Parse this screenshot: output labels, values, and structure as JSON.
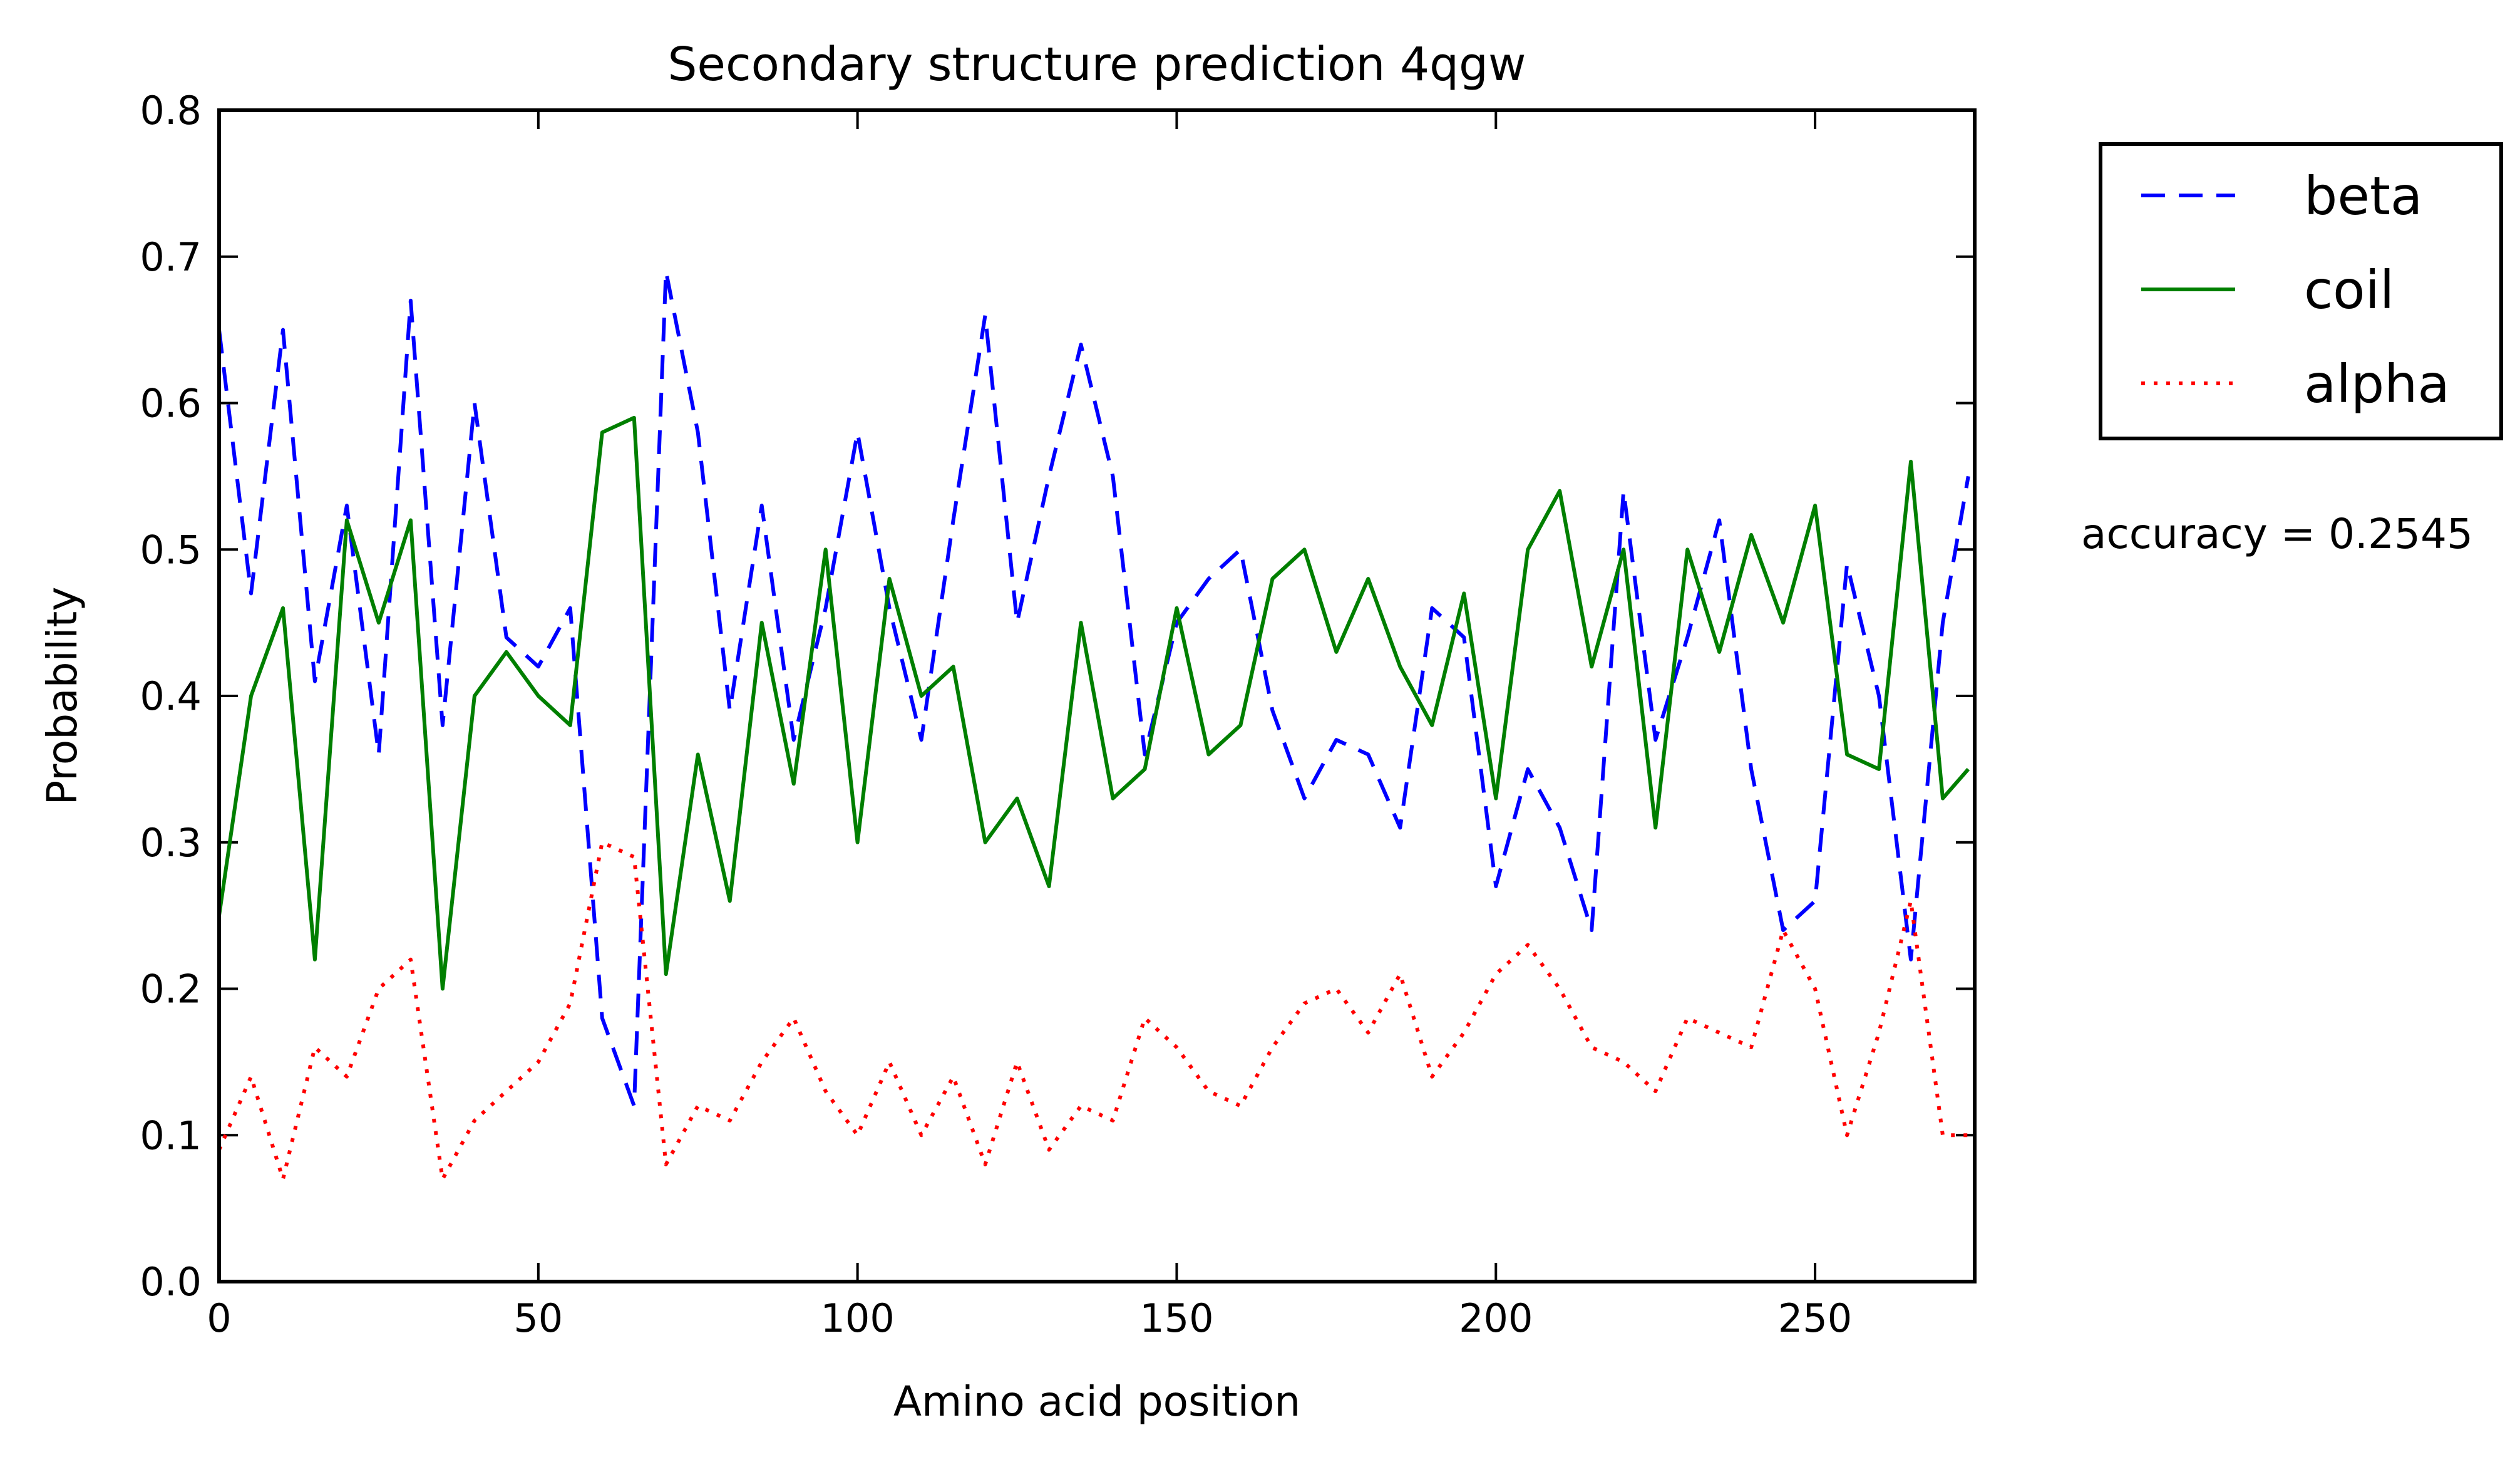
{
  "chart_data": {
    "type": "line",
    "title": "Secondary structure prediction 4qgw",
    "xlabel": "Amino acid position",
    "ylabel": "Probability",
    "xlim": [
      0,
      275
    ],
    "ylim": [
      0.0,
      0.8
    ],
    "xticks": [
      0,
      50,
      100,
      150,
      200,
      250
    ],
    "yticks": [
      0.0,
      0.1,
      0.2,
      0.3,
      0.4,
      0.5,
      0.6,
      0.7,
      0.8
    ],
    "xtick_labels": [
      "0",
      "50",
      "100",
      "150",
      "200",
      "250"
    ],
    "ytick_labels": [
      "0.0",
      "0.1",
      "0.2",
      "0.3",
      "0.4",
      "0.5",
      "0.6",
      "0.7",
      "0.8"
    ],
    "grid": false,
    "legend_position": "outside-top-right",
    "annotation": "accuracy = 0.2545",
    "x": [
      0,
      5,
      10,
      15,
      20,
      25,
      30,
      35,
      40,
      45,
      50,
      55,
      60,
      65,
      70,
      75,
      80,
      85,
      90,
      95,
      100,
      105,
      110,
      115,
      120,
      125,
      130,
      135,
      140,
      145,
      150,
      155,
      160,
      165,
      170,
      175,
      180,
      185,
      190,
      195,
      200,
      205,
      210,
      215,
      220,
      225,
      230,
      235,
      240,
      245,
      250,
      255,
      260,
      265,
      270,
      274
    ],
    "series": [
      {
        "name": "beta",
        "color": "#0000ff",
        "dash": "dashed",
        "values": [
          0.65,
          0.47,
          0.65,
          0.41,
          0.53,
          0.36,
          0.67,
          0.38,
          0.6,
          0.44,
          0.42,
          0.46,
          0.18,
          0.12,
          0.69,
          0.58,
          0.39,
          0.53,
          0.37,
          0.46,
          0.58,
          0.46,
          0.37,
          0.52,
          0.66,
          0.45,
          0.55,
          0.64,
          0.55,
          0.36,
          0.45,
          0.48,
          0.5,
          0.39,
          0.33,
          0.37,
          0.36,
          0.31,
          0.46,
          0.44,
          0.27,
          0.35,
          0.31,
          0.24,
          0.54,
          0.37,
          0.44,
          0.52,
          0.35,
          0.24,
          0.26,
          0.49,
          0.4,
          0.22,
          0.45,
          0.55
        ]
      },
      {
        "name": "coil",
        "color": "#007f00",
        "dash": "solid",
        "values": [
          0.25,
          0.4,
          0.46,
          0.22,
          0.52,
          0.45,
          0.52,
          0.2,
          0.4,
          0.43,
          0.4,
          0.38,
          0.58,
          0.59,
          0.21,
          0.36,
          0.26,
          0.45,
          0.34,
          0.5,
          0.3,
          0.48,
          0.4,
          0.42,
          0.3,
          0.33,
          0.27,
          0.45,
          0.33,
          0.35,
          0.46,
          0.36,
          0.38,
          0.48,
          0.5,
          0.43,
          0.48,
          0.42,
          0.38,
          0.47,
          0.33,
          0.5,
          0.54,
          0.42,
          0.5,
          0.31,
          0.5,
          0.43,
          0.51,
          0.45,
          0.53,
          0.36,
          0.35,
          0.56,
          0.33,
          0.35
        ]
      },
      {
        "name": "alpha",
        "color": "#ff0000",
        "dash": "dotted",
        "values": [
          0.09,
          0.14,
          0.07,
          0.16,
          0.14,
          0.2,
          0.22,
          0.07,
          0.11,
          0.13,
          0.15,
          0.19,
          0.3,
          0.29,
          0.08,
          0.12,
          0.11,
          0.15,
          0.18,
          0.13,
          0.1,
          0.15,
          0.1,
          0.14,
          0.08,
          0.15,
          0.09,
          0.12,
          0.11,
          0.18,
          0.16,
          0.13,
          0.12,
          0.16,
          0.19,
          0.2,
          0.17,
          0.21,
          0.14,
          0.17,
          0.21,
          0.23,
          0.2,
          0.16,
          0.15,
          0.13,
          0.18,
          0.17,
          0.16,
          0.24,
          0.2,
          0.1,
          0.17,
          0.26,
          0.1,
          0.1
        ]
      }
    ]
  }
}
